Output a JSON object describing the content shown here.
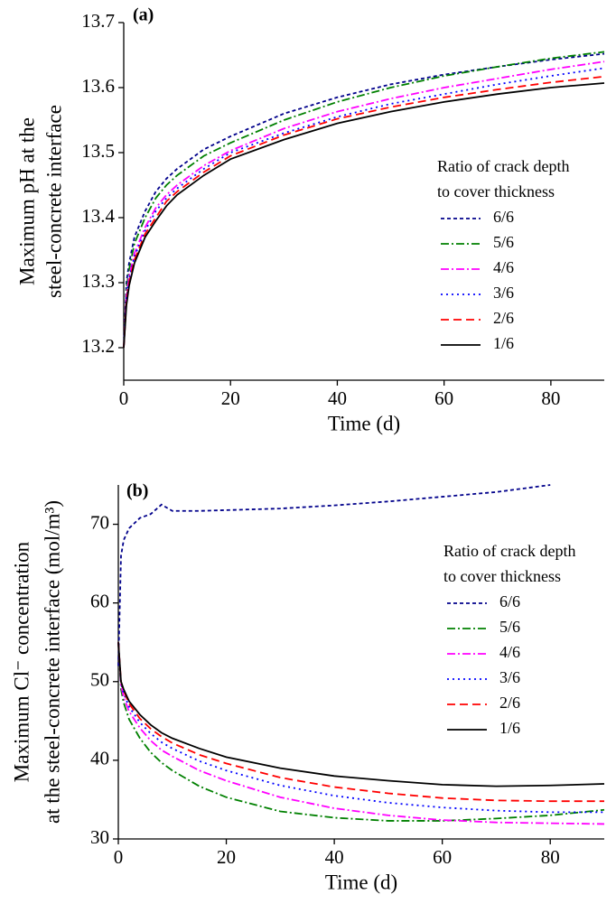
{
  "chart_data": [
    {
      "type": "line",
      "annotation": "(a)",
      "xlabel": "Time (d)",
      "ylabel": [
        "Maximum pH at the",
        "steel-concrete interface"
      ],
      "xlim": [
        0,
        90
      ],
      "xticks": [
        0,
        20,
        40,
        60,
        80
      ],
      "ylim": [
        13.15,
        13.7
      ],
      "yticks": [
        13.2,
        13.3,
        13.4,
        13.5,
        13.6,
        13.7
      ],
      "legend_title": [
        "Ratio of crack depth",
        "to cover thickness"
      ],
      "x": [
        0,
        0.5,
        1,
        2,
        4,
        6,
        8,
        10,
        15,
        20,
        30,
        40,
        50,
        60,
        70,
        80,
        90
      ],
      "series": [
        {
          "name": "6/6",
          "color": "#00008b",
          "dash": "short-dash",
          "values": [
            13.2,
            13.3,
            13.33,
            13.37,
            13.41,
            13.44,
            13.46,
            13.475,
            13.505,
            13.525,
            13.56,
            13.585,
            13.605,
            13.62,
            13.632,
            13.643,
            13.652
          ]
        },
        {
          "name": "5/6",
          "color": "#008000",
          "dash": "dash-dot",
          "values": [
            13.2,
            13.29,
            13.32,
            13.36,
            13.4,
            13.43,
            13.45,
            13.465,
            13.495,
            13.515,
            13.55,
            13.578,
            13.6,
            13.618,
            13.632,
            13.645,
            13.655
          ]
        },
        {
          "name": "4/6",
          "color": "#ff00ff",
          "dash": "dash-dot",
          "values": [
            13.2,
            13.28,
            13.31,
            13.345,
            13.385,
            13.415,
            13.435,
            13.45,
            13.48,
            13.503,
            13.537,
            13.563,
            13.583,
            13.6,
            13.614,
            13.628,
            13.64
          ]
        },
        {
          "name": "3/6",
          "color": "#0000ff",
          "dash": "dot",
          "values": [
            13.2,
            13.275,
            13.305,
            13.34,
            13.38,
            13.41,
            13.43,
            13.445,
            13.475,
            13.5,
            13.53,
            13.555,
            13.575,
            13.59,
            13.605,
            13.618,
            13.63
          ]
        },
        {
          "name": "2/6",
          "color": "#ff0000",
          "dash": "dash",
          "values": [
            13.2,
            13.27,
            13.3,
            13.335,
            13.375,
            13.4,
            13.425,
            13.44,
            13.47,
            13.495,
            13.527,
            13.552,
            13.57,
            13.585,
            13.597,
            13.608,
            13.617
          ]
        },
        {
          "name": "1/6",
          "color": "#000000",
          "dash": "solid",
          "values": [
            13.2,
            13.265,
            13.295,
            13.33,
            13.37,
            13.395,
            13.418,
            13.435,
            13.465,
            13.49,
            13.52,
            13.545,
            13.563,
            13.578,
            13.59,
            13.6,
            13.607
          ]
        }
      ]
    },
    {
      "type": "line",
      "annotation": "(b)",
      "xlabel": "Time (d)",
      "ylabel": [
        "Maximum Cl⁻ concentration",
        "at the steel-concrete interface (mol/m³)"
      ],
      "xlim": [
        0,
        90
      ],
      "xticks": [
        0,
        20,
        40,
        60,
        80
      ],
      "ylim": [
        30,
        75
      ],
      "yticks": [
        30,
        40,
        50,
        60,
        70
      ],
      "legend_title": [
        "Ratio of crack depth",
        "to cover thickness"
      ],
      "x": [
        0,
        0.5,
        1,
        2,
        4,
        6,
        8,
        10,
        15,
        20,
        30,
        40,
        50,
        60,
        70,
        80,
        90
      ],
      "series": [
        {
          "name": "6/6",
          "color": "#00008b",
          "dash": "short-dash",
          "values": [
            52,
            66,
            68,
            69.5,
            70.8,
            71.3,
            72.5,
            71.7,
            71.7,
            71.8,
            72,
            72.4,
            72.9,
            73.5,
            74.1,
            75,
            null
          ]
        },
        {
          "name": "5/6",
          "color": "#008000",
          "dash": "dash-dot",
          "values": [
            55,
            49,
            47.3,
            45.2,
            42.8,
            41,
            39.7,
            38.7,
            36.7,
            35.3,
            33.5,
            32.7,
            32.3,
            32.3,
            32.6,
            33,
            33.7
          ]
        },
        {
          "name": "4/6",
          "color": "#ff00ff",
          "dash": "dash-dot",
          "values": [
            55,
            49.5,
            48,
            46.2,
            44.1,
            42.5,
            41.3,
            40.5,
            38.7,
            37.4,
            35.3,
            33.9,
            33,
            32.4,
            32.1,
            32,
            31.9
          ]
        },
        {
          "name": "3/6",
          "color": "#0000ff",
          "dash": "dot",
          "values": [
            55,
            49.7,
            48.5,
            46.8,
            44.8,
            43.4,
            42.3,
            41.5,
            39.9,
            38.7,
            36.8,
            35.5,
            34.6,
            34,
            33.6,
            33.4,
            33.4
          ]
        },
        {
          "name": "2/6",
          "color": "#ff0000",
          "dash": "dash",
          "values": [
            55,
            50,
            48.8,
            47.2,
            45.3,
            44,
            43,
            42.2,
            40.7,
            39.6,
            37.8,
            36.6,
            35.8,
            35.2,
            34.9,
            34.8,
            34.8
          ]
        },
        {
          "name": "1/6",
          "color": "#000000",
          "dash": "solid",
          "values": [
            55,
            50,
            49,
            47.5,
            45.8,
            44.5,
            43.5,
            42.8,
            41.5,
            40.4,
            39,
            38,
            37.4,
            36.9,
            36.7,
            36.8,
            37
          ]
        }
      ]
    }
  ]
}
